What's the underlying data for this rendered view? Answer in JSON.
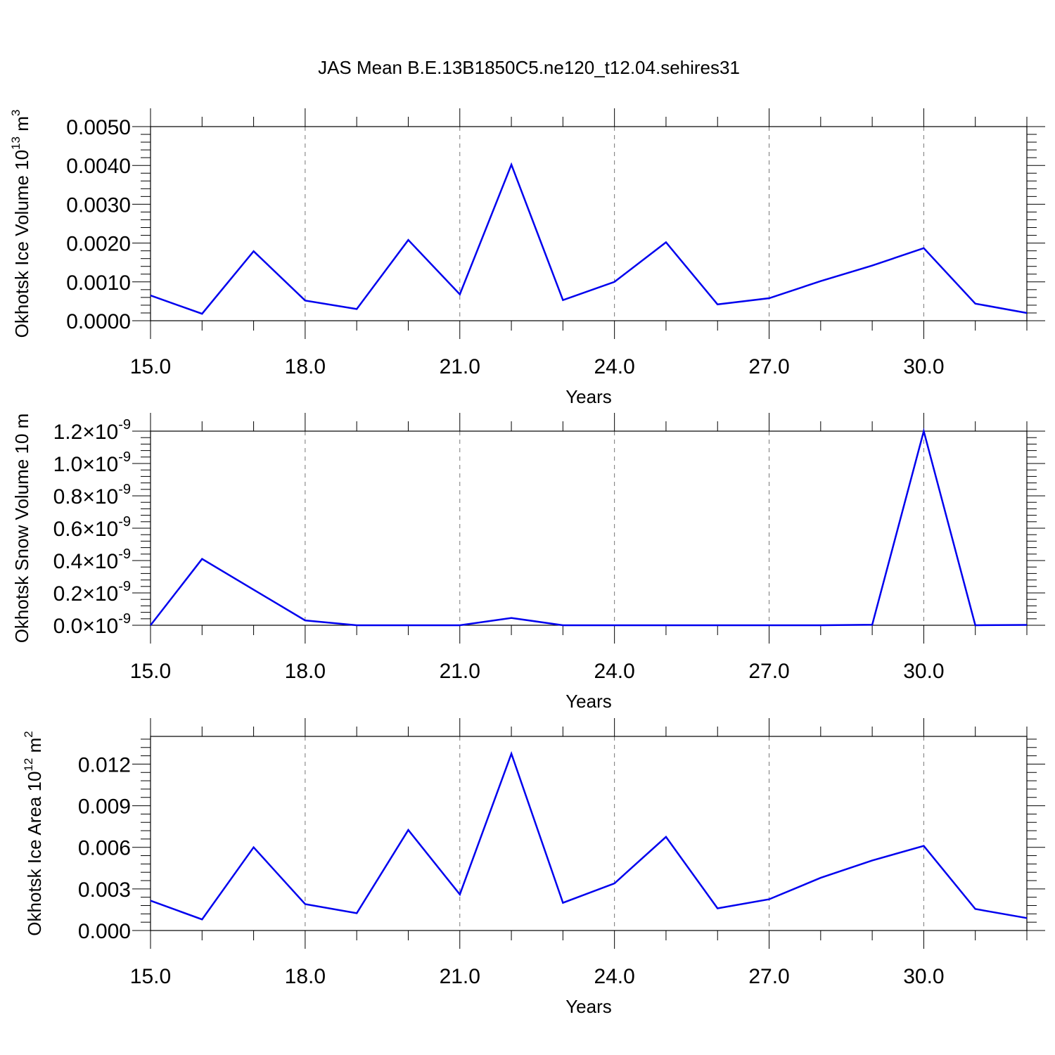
{
  "figure": {
    "title": "JAS Mean B.E.13B1850C5.ne120_t12.04.sehires31",
    "line_color": "#0000ee"
  },
  "chart_data": [
    {
      "type": "line",
      "xlabel": "Years",
      "ylabel": "Okhotsk Ice Volume 10",
      "ylabel_exp": "13",
      "ylabel_unit": " m",
      "ylabel_unit_exp": "3",
      "xlim": [
        15,
        32
      ],
      "ylim": [
        0,
        0.005
      ],
      "x_ticks": [
        15,
        18,
        21,
        24,
        27,
        30
      ],
      "x_tick_labels": [
        "15.0",
        "18.0",
        "21.0",
        "24.0",
        "27.0",
        "30.0"
      ],
      "y_ticks": [
        0,
        0.001,
        0.002,
        0.003,
        0.004,
        0.005
      ],
      "y_tick_labels": [
        "0.0000",
        "0.0010",
        "0.0020",
        "0.0030",
        "0.0040",
        "0.0050"
      ],
      "x_grid": true,
      "series": [
        {
          "x": [
            15,
            16,
            17,
            18,
            19,
            20,
            21,
            22,
            23,
            24,
            25,
            26,
            27,
            28,
            29,
            30,
            31,
            32
          ],
          "values": [
            0.00065,
            0.00018,
            0.00179,
            0.00052,
            0.0003,
            0.00208,
            0.00068,
            0.00402,
            0.00053,
            0.001,
            0.00202,
            0.00042,
            0.00058,
            0.00102,
            0.00142,
            0.00187,
            0.00044,
            0.0002
          ]
        }
      ]
    },
    {
      "type": "line",
      "xlabel": "Years",
      "ylabel": "Okhotsk Snow Volume 10",
      "ylabel_exp": "",
      "ylabel_unit": " m",
      "ylabel_unit_exp": "",
      "xlim": [
        15,
        32
      ],
      "ylim": [
        0,
        1.2e-09
      ],
      "x_ticks": [
        15,
        18,
        21,
        24,
        27,
        30
      ],
      "x_tick_labels": [
        "15.0",
        "18.0",
        "21.0",
        "24.0",
        "27.0",
        "30.0"
      ],
      "y_ticks": [
        0,
        2e-10,
        4e-10,
        6e-10,
        8e-10,
        1e-09,
        1.2e-09
      ],
      "y_tick_labels": [
        "0.0×10",
        "0.2×10",
        "0.4×10",
        "0.6×10",
        "0.8×10",
        "1.0×10",
        "1.2×10"
      ],
      "y_tick_exp": "-9",
      "x_grid": true,
      "series": [
        {
          "x": [
            15,
            16,
            17,
            18,
            19,
            20,
            21,
            22,
            23,
            24,
            25,
            26,
            27,
            28,
            29,
            30,
            31,
            32
          ],
          "values": [
            0.0,
            4.1e-10,
            2.2e-10,
            3e-11,
            0.0,
            0.0,
            0.0,
            4.5e-11,
            0.0,
            0.0,
            0.0,
            0.0,
            0.0,
            0.0,
            3e-12,
            1.2e-09,
            0.0,
            2e-12
          ]
        }
      ]
    },
    {
      "type": "line",
      "xlabel": "Years",
      "ylabel": "Okhotsk Ice Area 10",
      "ylabel_exp": "12",
      "ylabel_unit": " m",
      "ylabel_unit_exp": "2",
      "xlim": [
        15,
        32
      ],
      "ylim": [
        0,
        0.014
      ],
      "x_ticks": [
        15,
        18,
        21,
        24,
        27,
        30
      ],
      "x_tick_labels": [
        "15.0",
        "18.0",
        "21.0",
        "24.0",
        "27.0",
        "30.0"
      ],
      "y_ticks": [
        0,
        0.003,
        0.006,
        0.009,
        0.012
      ],
      "y_tick_labels": [
        "0.000",
        "0.003",
        "0.006",
        "0.009",
        "0.012"
      ],
      "x_grid": true,
      "series": [
        {
          "x": [
            15,
            16,
            17,
            18,
            19,
            20,
            21,
            22,
            23,
            24,
            25,
            26,
            27,
            28,
            29,
            30,
            31,
            32
          ],
          "values": [
            0.00215,
            0.0008,
            0.006,
            0.0019,
            0.00125,
            0.00725,
            0.0026,
            0.01275,
            0.002,
            0.0034,
            0.00675,
            0.0016,
            0.00225,
            0.0038,
            0.00505,
            0.0061,
            0.00155,
            0.0009
          ]
        }
      ]
    }
  ]
}
